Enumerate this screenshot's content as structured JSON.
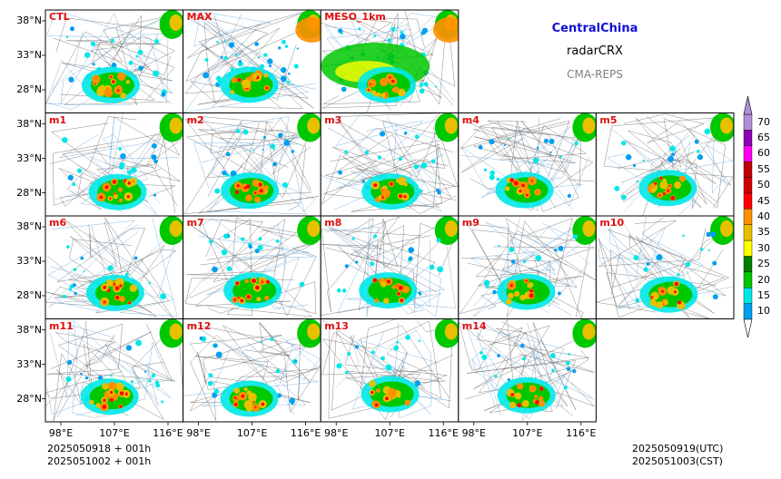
{
  "header": {
    "region": "CentralChina",
    "variable": "radarCRX",
    "system": "CMA-REPS",
    "region_color": "#1010d8",
    "system_color": "#808080"
  },
  "panels": [
    [
      "CTL",
      "MAX",
      "MESO_1km"
    ],
    [
      "m1",
      "m2",
      "m3",
      "m4",
      "m5"
    ],
    [
      "m6",
      "m7",
      "m8",
      "m9",
      "m10"
    ],
    [
      "m11",
      "m12",
      "m13",
      "m14"
    ]
  ],
  "axes": {
    "lat_ticks": [
      "38°N",
      "33°N",
      "28°N"
    ],
    "lon_ticks": [
      "98°E",
      "107°E",
      "116°E"
    ]
  },
  "colorbar": {
    "levels": [
      "10",
      "15",
      "20",
      "25",
      "30",
      "35",
      "40",
      "45",
      "50",
      "55",
      "60",
      "65",
      "70"
    ],
    "colors": [
      "#00a0f0",
      "#00e8e8",
      "#00c800",
      "#008000",
      "#ffff00",
      "#e8c000",
      "#ff9000",
      "#ff0000",
      "#d00000",
      "#c00000",
      "#ff00f0",
      "#9000b4",
      "#b090d8"
    ],
    "under_color": "#ffffff",
    "over_color": "#b090d8"
  },
  "footer": {
    "init_utc": "2025050918  +  001h",
    "init_cst": "2025051002  +  001h",
    "valid_utc": "2025050919(UTC)",
    "valid_cst": "2025051003(CST)"
  }
}
